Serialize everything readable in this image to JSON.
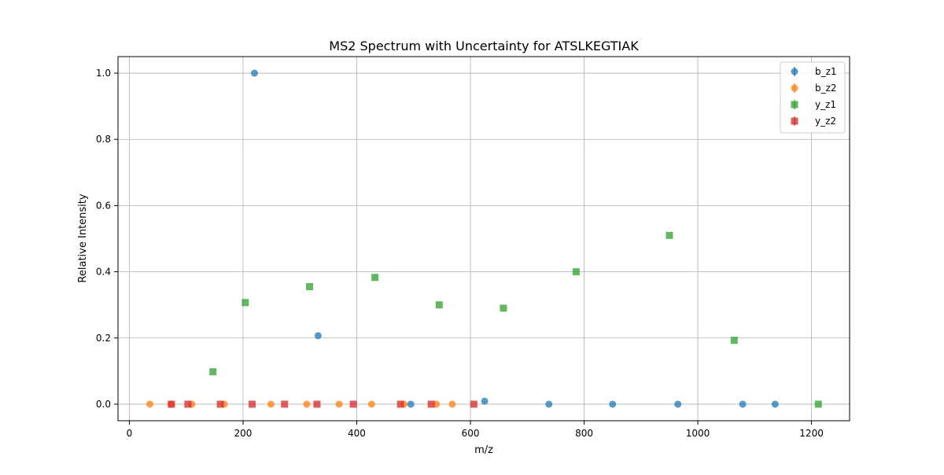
{
  "chart_data": {
    "type": "scatter",
    "title": "MS2 Spectrum with Uncertainty for ATSLKEGTIAK",
    "xlabel": "m/z",
    "ylabel": "Relative Intensity",
    "xlim": [
      -20,
      1267
    ],
    "ylim": [
      -0.05,
      1.05
    ],
    "xticks": [
      0,
      200,
      400,
      600,
      800,
      1000,
      1200
    ],
    "yticks": [
      0.0,
      0.2,
      0.4,
      0.6,
      0.8,
      1.0
    ],
    "xtick_labels": [
      "0",
      "200",
      "400",
      "600",
      "800",
      "1000",
      "1200"
    ],
    "ytick_labels": [
      "0.0",
      "0.2",
      "0.4",
      "0.6",
      "0.8",
      "1.0"
    ],
    "grid": true,
    "legend_position": "top-right",
    "series": [
      {
        "name": "b_z1",
        "marker": "circle",
        "color": "#1f77b4",
        "points": [
          {
            "x": 220,
            "y": 1.0
          },
          {
            "x": 332,
            "y": 0.207
          },
          {
            "x": 495,
            "y": 0.0
          },
          {
            "x": 625,
            "y": 0.009
          },
          {
            "x": 738,
            "y": 0.0
          },
          {
            "x": 850,
            "y": 0.0
          },
          {
            "x": 965,
            "y": 0.0
          },
          {
            "x": 1079,
            "y": 0.0
          },
          {
            "x": 1136,
            "y": 0.0
          }
        ]
      },
      {
        "name": "b_z2",
        "marker": "circle",
        "color": "#ff7f0e",
        "points": [
          {
            "x": 36,
            "y": 0.0
          },
          {
            "x": 73,
            "y": 0.0
          },
          {
            "x": 110,
            "y": 0.0
          },
          {
            "x": 167,
            "y": 0.0
          },
          {
            "x": 249,
            "y": 0.0
          },
          {
            "x": 312,
            "y": 0.0
          },
          {
            "x": 369,
            "y": 0.0
          },
          {
            "x": 426,
            "y": 0.0
          },
          {
            "x": 483,
            "y": 0.0
          },
          {
            "x": 540,
            "y": 0.0
          },
          {
            "x": 568,
            "y": 0.0
          }
        ]
      },
      {
        "name": "y_z1",
        "marker": "square",
        "color": "#2ca02c",
        "points": [
          {
            "x": 147,
            "y": 0.098
          },
          {
            "x": 204,
            "y": 0.307
          },
          {
            "x": 317,
            "y": 0.355
          },
          {
            "x": 432,
            "y": 0.383
          },
          {
            "x": 545,
            "y": 0.3
          },
          {
            "x": 658,
            "y": 0.29
          },
          {
            "x": 786,
            "y": 0.4
          },
          {
            "x": 950,
            "y": 0.51
          },
          {
            "x": 1064,
            "y": 0.193
          },
          {
            "x": 1212,
            "y": 0.0
          }
        ]
      },
      {
        "name": "y_z2",
        "marker": "square",
        "color": "#d62728",
        "points": [
          {
            "x": 74,
            "y": 0.0
          },
          {
            "x": 103,
            "y": 0.0
          },
          {
            "x": 160,
            "y": 0.0
          },
          {
            "x": 216,
            "y": 0.0
          },
          {
            "x": 273,
            "y": 0.0
          },
          {
            "x": 330,
            "y": 0.0
          },
          {
            "x": 394,
            "y": 0.0
          },
          {
            "x": 477,
            "y": 0.0
          },
          {
            "x": 531,
            "y": 0.0
          },
          {
            "x": 606,
            "y": 0.0
          }
        ]
      }
    ]
  }
}
